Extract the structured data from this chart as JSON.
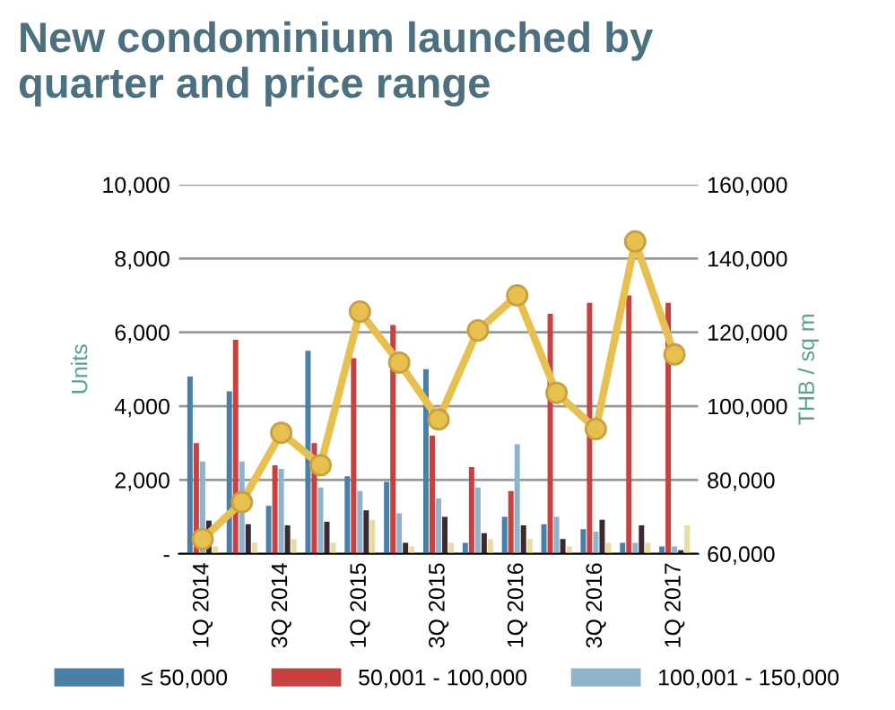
{
  "chart_data": {
    "type": "bar",
    "title": "New condominium launched by\nquarter and price range",
    "categories": [
      "1Q 2014",
      null,
      "3Q 2014",
      null,
      "1Q 2015",
      null,
      "3Q 2015",
      null,
      "1Q 2016",
      null,
      "3Q 2016",
      null,
      "1Q 2017"
    ],
    "series": [
      {
        "name": "≤ 50,000",
        "color": "#4a7fa8",
        "values": [
          4800,
          4400,
          1300,
          5500,
          2100,
          1950,
          5000,
          300,
          1000,
          800,
          670,
          300,
          200
        ]
      },
      {
        "name": "50,001 - 100,000",
        "color": "#c84040",
        "values": [
          3000,
          5800,
          2400,
          3000,
          5300,
          6200,
          3200,
          2350,
          1700,
          6500,
          6800,
          7000,
          6800
        ]
      },
      {
        "name": "100,001 - 150,000",
        "color": "#8db4cc",
        "values": [
          2500,
          2500,
          2300,
          1800,
          1700,
          1100,
          1500,
          1800,
          2970,
          1000,
          600,
          300,
          200
        ]
      },
      {
        "color": "#3a2a30",
        "values": [
          900,
          800,
          770,
          870,
          1180,
          300,
          1000,
          560,
          770,
          400,
          920,
          770,
          100
        ]
      },
      {
        "color": "#e8dca0",
        "values": [
          200,
          300,
          400,
          300,
          920,
          200,
          300,
          400,
          400,
          200,
          300,
          300,
          770
        ]
      },
      {
        "type": "line",
        "axis": "y2",
        "color": "#e8c050",
        "marker": "circle",
        "values": [
          64000,
          74000,
          92800,
          84000,
          125600,
          111800,
          96400,
          120500,
          130000,
          103600,
          93800,
          144600,
          114000
        ]
      }
    ],
    "ylabel": "Units",
    "y2label": "THB / sq m",
    "ylim": [
      0,
      10000
    ],
    "yticks": [
      {
        "value": 0,
        "label": "-"
      },
      {
        "value": 2000,
        "label": "2,000"
      },
      {
        "value": 4000,
        "label": "4,000"
      },
      {
        "value": 6000,
        "label": "6,000"
      },
      {
        "value": 8000,
        "label": "8,000"
      },
      {
        "value": 10000,
        "label": "10,000"
      }
    ],
    "y2lim": [
      60000,
      160000
    ],
    "y2ticks": [
      {
        "value": 60000,
        "label": "60,000"
      },
      {
        "value": 80000,
        "label": "80,000"
      },
      {
        "value": 100000,
        "label": "100,000"
      },
      {
        "value": 120000,
        "label": "120,000"
      },
      {
        "value": 140000,
        "label": "140,000"
      },
      {
        "value": 160000,
        "label": "160,000"
      }
    ],
    "grid": "y",
    "legend": "bottom"
  }
}
